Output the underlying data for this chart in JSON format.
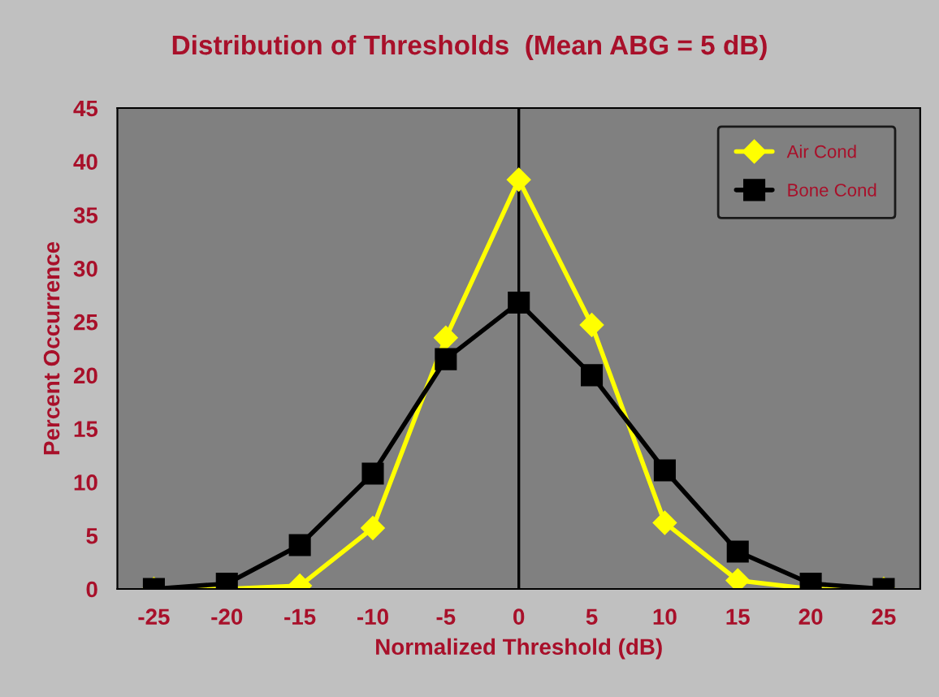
{
  "chart_data": {
    "type": "line",
    "title": "Distribution of Thresholds  (Mean ABG = 5 dB)",
    "xlabel": "Normalized Threshold (dB)",
    "ylabel": "Percent Occurrence",
    "categories": [
      "-25",
      "-20",
      "-15",
      "-10",
      "-5",
      "0",
      "5",
      "10",
      "15",
      "20",
      "25"
    ],
    "series": [
      {
        "name": "Air Cond",
        "color": "#ffff00",
        "marker": "diamond",
        "values": [
          0,
          0,
          0.3,
          5.7,
          23.5,
          38.3,
          24.7,
          6.2,
          0.8,
          0,
          0
        ]
      },
      {
        "name": "Bone Cond",
        "color": "#000000",
        "marker": "square",
        "values": [
          0,
          0.5,
          4.1,
          10.8,
          21.5,
          26.8,
          20,
          11.1,
          3.5,
          0.5,
          0
        ]
      }
    ],
    "ylim": [
      0,
      45
    ],
    "yticks": [
      0,
      5,
      10,
      15,
      20,
      25,
      30,
      35,
      40,
      45
    ],
    "ref_lines": [
      {
        "axis": "x",
        "value": "0",
        "color": "#000000"
      }
    ],
    "grid": false,
    "legend": "top right",
    "line_style": "solid"
  }
}
